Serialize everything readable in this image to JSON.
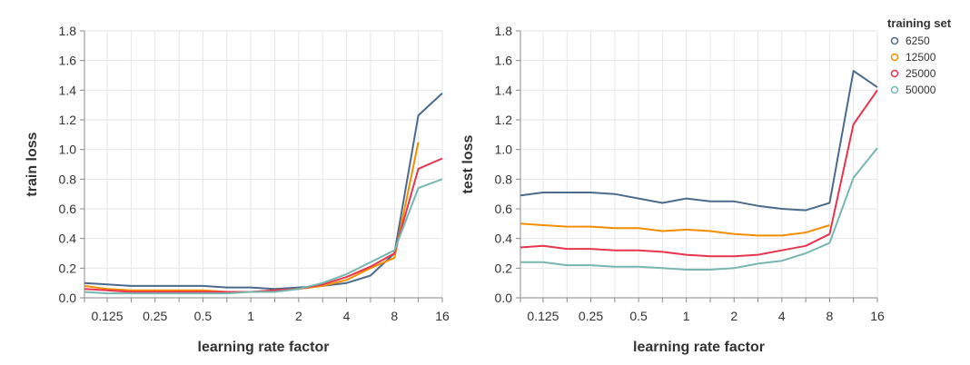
{
  "chart_data": [
    {
      "type": "line",
      "title": "",
      "xlabel": "learning rate factor",
      "ylabel": "train loss",
      "xscale": "log2",
      "xlim": [
        0.09,
        16
      ],
      "ylim": [
        0,
        1.8
      ],
      "xticks": [
        0.125,
        0.25,
        0.5,
        1,
        2,
        4,
        8,
        16
      ],
      "xtick_labels": [
        "0.125",
        "0.25",
        "0.5",
        "1",
        "2",
        "4",
        "8",
        "16"
      ],
      "yticks": [
        0,
        0.2,
        0.4,
        0.6,
        0.8,
        1.0,
        1.2,
        1.4,
        1.6,
        1.8
      ],
      "ytick_labels": [
        "0.0",
        "0.2",
        "0.4",
        "0.6",
        "0.8",
        "1.0",
        "1.2",
        "1.4",
        "1.6",
        "1.8"
      ],
      "grid": true,
      "x": [
        0.09,
        0.125,
        0.177,
        0.25,
        0.354,
        0.5,
        0.707,
        1,
        1.414,
        2,
        2.828,
        4,
        5.657,
        8,
        11.31,
        16
      ],
      "series": [
        {
          "name": "6250",
          "color": "#4c6a8c",
          "values": [
            0.1,
            0.09,
            0.08,
            0.08,
            0.08,
            0.08,
            0.07,
            0.07,
            0.06,
            0.07,
            0.08,
            0.1,
            0.15,
            0.3,
            1.23,
            1.38
          ]
        },
        {
          "name": "12500",
          "color": "#f28e00",
          "values": [
            0.08,
            0.06,
            0.05,
            0.05,
            0.05,
            0.05,
            0.04,
            0.04,
            0.05,
            0.06,
            0.08,
            0.12,
            0.2,
            0.27,
            1.05,
            null
          ]
        },
        {
          "name": "25000",
          "color": "#e8344e",
          "values": [
            0.06,
            0.05,
            0.04,
            0.04,
            0.04,
            0.04,
            0.04,
            0.04,
            0.05,
            0.06,
            0.09,
            0.14,
            0.21,
            0.3,
            0.87,
            0.94
          ]
        },
        {
          "name": "50000",
          "color": "#76b7b2",
          "values": [
            0.04,
            0.03,
            0.03,
            0.03,
            0.03,
            0.03,
            0.03,
            0.04,
            0.04,
            0.06,
            0.1,
            0.16,
            0.24,
            0.32,
            0.74,
            0.8
          ]
        }
      ]
    },
    {
      "type": "line",
      "title": "",
      "xlabel": "learning rate factor",
      "ylabel": "test loss",
      "xscale": "log2",
      "xlim": [
        0.09,
        16
      ],
      "ylim": [
        0,
        1.8
      ],
      "xticks": [
        0.125,
        0.25,
        0.5,
        1,
        2,
        4,
        8,
        16
      ],
      "xtick_labels": [
        "0.125",
        "0.25",
        "0.5",
        "1",
        "2",
        "4",
        "8",
        "16"
      ],
      "yticks": [
        0,
        0.2,
        0.4,
        0.6,
        0.8,
        1.0,
        1.2,
        1.4,
        1.6,
        1.8
      ],
      "ytick_labels": [
        "0.0",
        "0.2",
        "0.4",
        "0.6",
        "0.8",
        "1.0",
        "1.2",
        "1.4",
        "1.6",
        "1.8"
      ],
      "grid": true,
      "x": [
        0.09,
        0.125,
        0.177,
        0.25,
        0.354,
        0.5,
        0.707,
        1,
        1.414,
        2,
        2.828,
        4,
        5.657,
        8,
        11.31,
        16
      ],
      "series": [
        {
          "name": "6250",
          "color": "#4c6a8c",
          "values": [
            0.69,
            0.71,
            0.71,
            0.71,
            0.7,
            0.67,
            0.64,
            0.67,
            0.65,
            0.65,
            0.62,
            0.6,
            0.59,
            0.64,
            1.53,
            1.42
          ]
        },
        {
          "name": "12500",
          "color": "#f28e00",
          "values": [
            0.5,
            0.49,
            0.48,
            0.48,
            0.47,
            0.47,
            0.45,
            0.46,
            0.45,
            0.43,
            0.42,
            0.42,
            0.44,
            0.49,
            null,
            null
          ]
        },
        {
          "name": "25000",
          "color": "#e8344e",
          "values": [
            0.34,
            0.35,
            0.33,
            0.33,
            0.32,
            0.32,
            0.31,
            0.29,
            0.28,
            0.28,
            0.29,
            0.32,
            0.35,
            0.43,
            1.17,
            1.4
          ]
        },
        {
          "name": "50000",
          "color": "#76b7b2",
          "values": [
            0.24,
            0.24,
            0.22,
            0.22,
            0.21,
            0.21,
            0.2,
            0.19,
            0.19,
            0.2,
            0.23,
            0.25,
            0.3,
            0.37,
            0.81,
            1.01
          ]
        }
      ]
    }
  ],
  "legend": {
    "title": "training set",
    "placement": "right",
    "items": [
      {
        "label": "6250",
        "color": "#4c6a8c"
      },
      {
        "label": "12500",
        "color": "#f28e00"
      },
      {
        "label": "25000",
        "color": "#e8344e"
      },
      {
        "label": "50000",
        "color": "#76b7b2"
      }
    ]
  }
}
